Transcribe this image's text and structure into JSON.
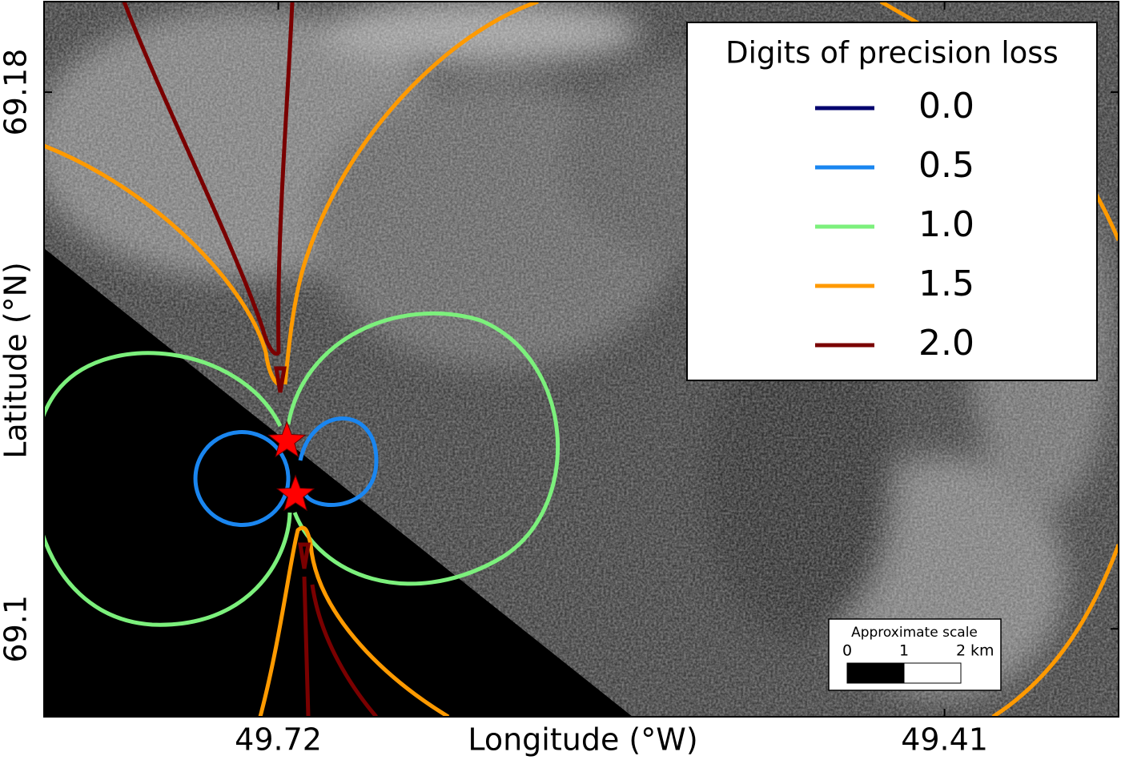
{
  "chart_data": {
    "type": "contour-map",
    "xlabel": "Longitude (°W)",
    "ylabel": "Latitude (°N)",
    "xlim": [
      49.829,
      49.329
    ],
    "ylim": [
      69.0869,
      69.1935
    ],
    "xticks": [
      49.72,
      49.41
    ],
    "yticks": [
      69.1,
      69.18
    ],
    "legend_title": "Digits of precision loss",
    "levels": [
      {
        "value": 0,
        "label": "0.0",
        "color": "#00006e"
      },
      {
        "value": 0.5,
        "label": "0.5",
        "color": "#1a86f0"
      },
      {
        "value": 1,
        "label": "1.0",
        "color": "#7cf07c"
      },
      {
        "value": 1.5,
        "label": "1.5",
        "color": "#ff9a00"
      },
      {
        "value": 2,
        "label": "2.0",
        "color": "#7a0000"
      }
    ],
    "sources": {
      "lon": [
        49.716,
        49.712
      ],
      "lat": [
        69.128,
        69.12
      ],
      "color": "#ff0000"
    },
    "scale_bar": {
      "title": "Approximate scale",
      "ticks": [
        0,
        1,
        2
      ],
      "unit": "km"
    }
  }
}
